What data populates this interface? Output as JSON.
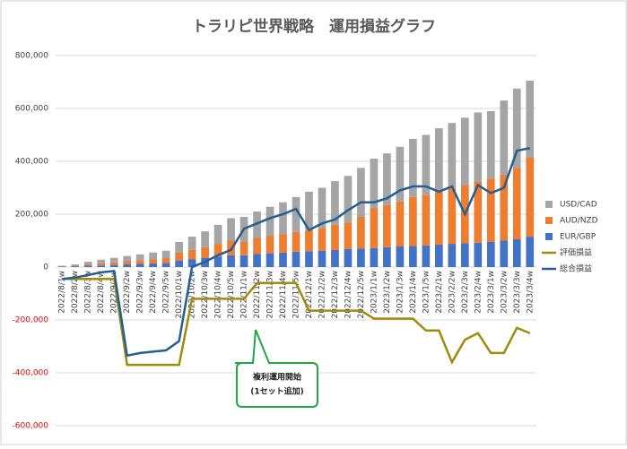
{
  "chart_data": {
    "type": "bar",
    "title": "トラリピ世界戦略　運用損益グラフ",
    "categories": [
      "2022/8/1w",
      "2022/8/2w",
      "2022/8/3w",
      "2022/8/4w",
      "2022/9/1w",
      "2022/9/2w",
      "2022/9/3w",
      "2022/9/4w",
      "2022/9/5w",
      "2022/10/1w",
      "2022/10/2w",
      "2022/10/3w",
      "2022/10/4w",
      "2022/10/5w",
      "2022/11/1w",
      "2022/11/2w",
      "2022/11/3w",
      "2022/11/4w",
      "2022/11/5w",
      "2022/12/1w",
      "2022/12/2w",
      "2022/12/3w",
      "2022/12/4w",
      "2022/12/5w",
      "2023/1/1w",
      "2023/1/2w",
      "2023/1/3w",
      "2023/1/4w",
      "2023/1/5w",
      "2023/2/1w",
      "2023/2/2w",
      "2023/2/3w",
      "2023/2/4w",
      "2023/3/1w",
      "2023/3/2w",
      "2023/3/3w",
      "2023/3/4w"
    ],
    "series": [
      {
        "name": "EUR/GBP",
        "color": "#4472c4",
        "kind": "bar",
        "values": [
          2000,
          3000,
          5000,
          6000,
          8000,
          10000,
          12000,
          14000,
          16000,
          25000,
          30000,
          35000,
          40000,
          45000,
          45000,
          50000,
          52000,
          55000,
          58000,
          60000,
          62000,
          65000,
          68000,
          70000,
          72000,
          75000,
          78000,
          80000,
          82000,
          85000,
          88000,
          90000,
          92000,
          95000,
          100000,
          105000,
          115000
        ]
      },
      {
        "name": "AUD/NZD",
        "color": "#ed7d31",
        "kind": "bar",
        "values": [
          1000,
          2000,
          5000,
          8000,
          10000,
          12000,
          14000,
          16000,
          18000,
          30000,
          35000,
          40000,
          48000,
          55000,
          50000,
          60000,
          65000,
          70000,
          75000,
          80000,
          85000,
          95000,
          100000,
          120000,
          150000,
          160000,
          170000,
          185000,
          190000,
          200000,
          210000,
          220000,
          230000,
          240000,
          250000,
          270000,
          300000
        ]
      },
      {
        "name": "USD/CAD",
        "color": "#a5a5a5",
        "kind": "bar",
        "values": [
          2000,
          5000,
          10000,
          14000,
          17000,
          20000,
          22000,
          25000,
          28000,
          40000,
          50000,
          60000,
          72000,
          85000,
          95000,
          100000,
          111000,
          120000,
          132000,
          145000,
          153000,
          165000,
          177000,
          185000,
          188000,
          195000,
          207000,
          220000,
          228000,
          240000,
          247000,
          255000,
          263000,
          255000,
          280000,
          300000,
          290000
        ]
      },
      {
        "name": "評価損益",
        "color": "#a08b0c",
        "kind": "line",
        "values": [
          -45000,
          -45000,
          -45000,
          -45000,
          -45000,
          -370000,
          -370000,
          -370000,
          -370000,
          -370000,
          -120000,
          -120000,
          -120000,
          -120000,
          -120000,
          -60000,
          -60000,
          -60000,
          -60000,
          -165000,
          -165000,
          -165000,
          -165000,
          -165000,
          -195000,
          -195000,
          -195000,
          -195000,
          -240000,
          -240000,
          -360000,
          -275000,
          -250000,
          -325000,
          -325000,
          -230000,
          -250000
        ]
      },
      {
        "name": "総合損益",
        "color": "#255e91",
        "kind": "line",
        "values": [
          -45000,
          -40000,
          -30000,
          -20000,
          -15000,
          -335000,
          -325000,
          -320000,
          -315000,
          -280000,
          0,
          20000,
          45000,
          65000,
          145000,
          165000,
          185000,
          200000,
          220000,
          140000,
          165000,
          180000,
          215000,
          245000,
          245000,
          260000,
          290000,
          305000,
          305000,
          285000,
          305000,
          200000,
          310000,
          280000,
          300000,
          440000,
          450000
        ]
      }
    ],
    "ylim": [
      -600000,
      800000
    ],
    "yticks": [
      {
        "value": -600000,
        "label": "-600,000"
      },
      {
        "value": -400000,
        "label": "-400,000"
      },
      {
        "value": -200000,
        "label": "-200,000"
      },
      0,
      {
        "value": 200000,
        "label": "200,000"
      },
      {
        "value": 400000,
        "label": "400,000"
      },
      {
        "value": 600000,
        "label": "600,000"
      },
      {
        "value": 800000,
        "label": "800,000"
      }
    ],
    "grid": true,
    "legend": "right",
    "annotation": [
      "複利運用開始",
      "(1セット追加)"
    ]
  }
}
